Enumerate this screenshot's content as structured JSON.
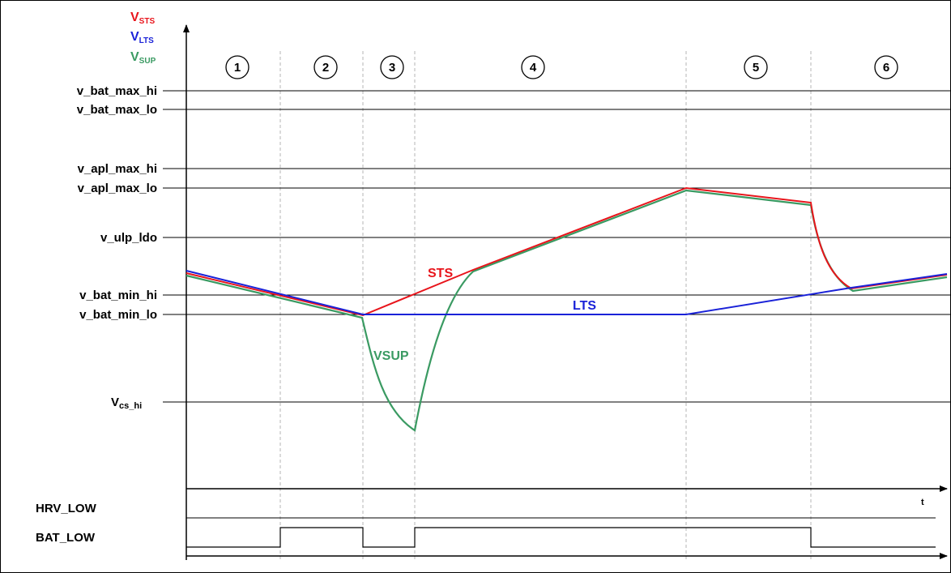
{
  "legend": {
    "vsts": {
      "main": "V",
      "sub": "STS",
      "color": "#e8141b"
    },
    "vlts": {
      "main": "V",
      "sub": "LTS",
      "color": "#1a22d8"
    },
    "vsup": {
      "main": "V",
      "sub": "SUP",
      "color": "#3a9a62"
    }
  },
  "phases": [
    "1",
    "2",
    "3",
    "4",
    "5",
    "6"
  ],
  "levels": {
    "v_bat_max_hi": "v_bat_max_hi",
    "v_bat_max_lo": "v_bat_max_lo",
    "v_apl_max_hi": "v_apl_max_hi",
    "v_apl_max_lo": "v_apl_max_lo",
    "v_ulp_ldo": "v_ulp_ldo",
    "v_bat_min_hi": "v_bat_min_hi",
    "v_bat_min_lo": "v_bat_min_lo",
    "vcs_hi_main": "V",
    "vcs_hi_sub": "cs_hi"
  },
  "curve_labels": {
    "sts": "STS",
    "lts": "LTS",
    "vsup": "VSUP"
  },
  "signals": {
    "hrv_low": "HRV_LOW",
    "bat_low": "BAT_LOW"
  },
  "time_axis_label": "t",
  "colors": {
    "sts": "#e8141b",
    "lts": "#1a22d8",
    "vsup": "#3a9a62",
    "grid": "#000000",
    "divider": "#b0b0b0"
  }
}
